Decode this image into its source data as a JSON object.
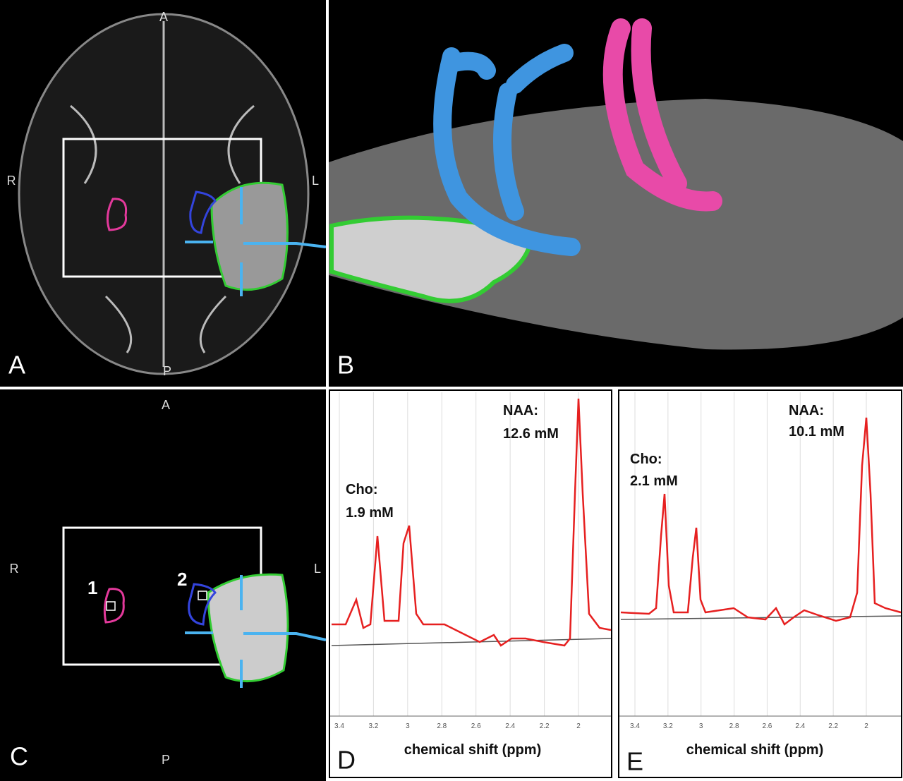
{
  "panels": [
    {
      "label": "A",
      "orientation": {
        "top": "A",
        "bottom": "P",
        "left": "R",
        "right": "L"
      }
    },
    {
      "label": "B"
    },
    {
      "label": "C",
      "orientation": {
        "top": "A",
        "bottom": "P",
        "left": "R",
        "right": "L"
      },
      "roi_labels": [
        "1",
        "2"
      ]
    },
    {
      "label": "D",
      "annotations": [
        {
          "name": "Cho:",
          "value": "1.9 mM"
        },
        {
          "name": "NAA:",
          "value": "12.6 mM"
        }
      ],
      "xlabel": "chemical shift (ppm)",
      "xticks": [
        3.4,
        3.2,
        3.0,
        2.8,
        2.6,
        2.4,
        2.2,
        2.0
      ]
    },
    {
      "label": "E",
      "annotations": [
        {
          "name": "Cho:",
          "value": "2.1 mM"
        },
        {
          "name": "NAA:",
          "value": "10.1 mM"
        }
      ],
      "xlabel": "chemical shift (ppm)",
      "xticks": [
        3.4,
        3.2,
        3.0,
        2.8,
        2.6,
        2.4,
        2.2,
        2.0
      ]
    }
  ]
}
